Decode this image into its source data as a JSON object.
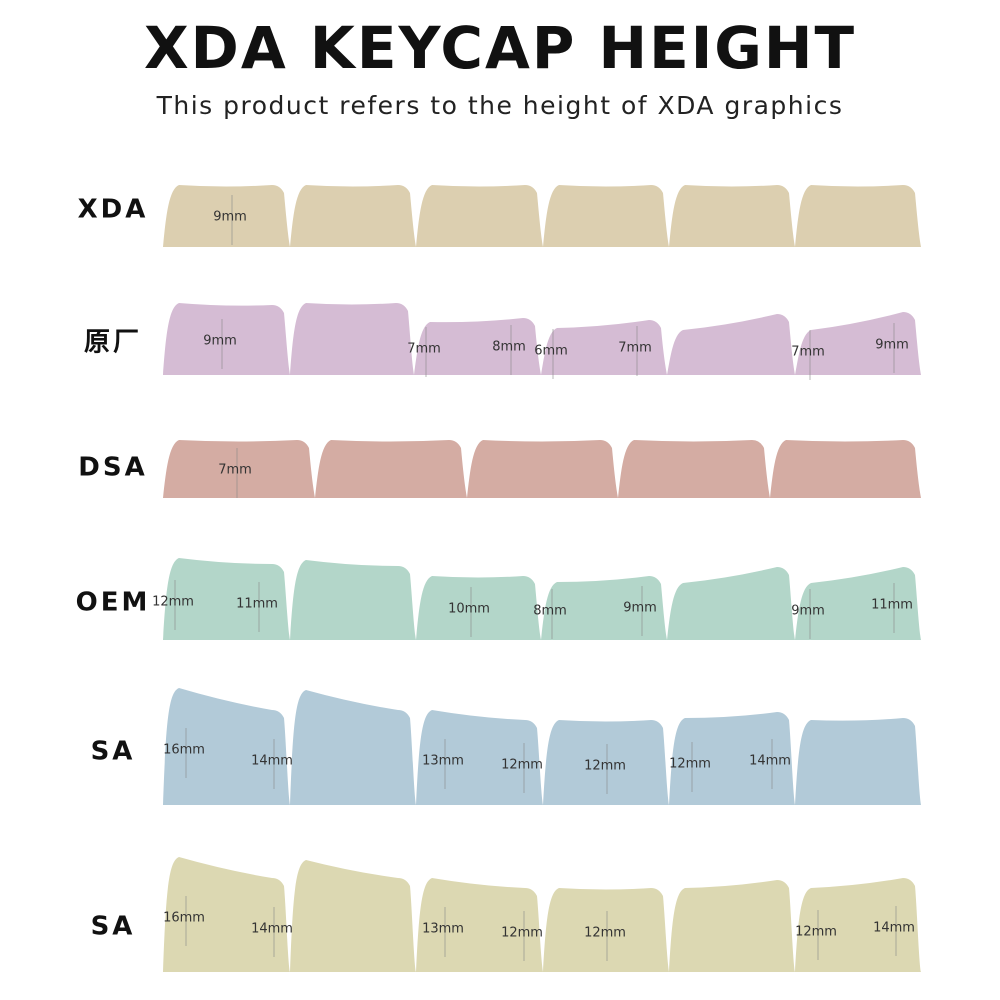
{
  "title": "XDA KEYCAP HEIGHT",
  "subtitle": "This product refers to the height of XDA graphics",
  "rows": [
    {
      "label": "XDA",
      "measurements": [
        "9mm"
      ]
    },
    {
      "label": "原厂",
      "measurements": [
        "9mm",
        "7mm",
        "8mm",
        "6mm",
        "7mm",
        "7mm",
        "9mm"
      ]
    },
    {
      "label": "DSA",
      "measurements": [
        "7mm"
      ]
    },
    {
      "label": "OEM",
      "measurements": [
        "12mm",
        "11mm",
        "10mm",
        "8mm",
        "9mm",
        "9mm",
        "11mm"
      ]
    },
    {
      "label": "SA",
      "measurements": [
        "16mm",
        "14mm",
        "13mm",
        "12mm",
        "12mm",
        "12mm",
        "14mm"
      ]
    },
    {
      "label": "SA",
      "measurements": [
        "16mm",
        "14mm",
        "13mm",
        "12mm",
        "12mm",
        "12mm",
        "14mm"
      ]
    }
  ]
}
